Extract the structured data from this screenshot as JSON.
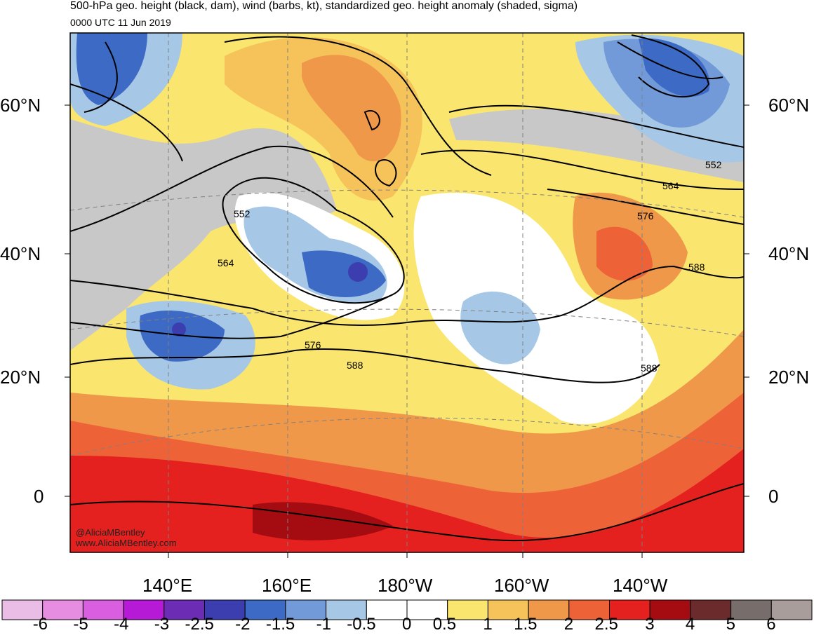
{
  "header": {
    "title": "500-hPa geo. height (black, dam), wind (barbs, kt), standardized geo. height anomaly (shaded, sigma)",
    "valid_time": "0000 UTC 11 Jun 2019"
  },
  "axes": {
    "lat_left": [
      "60°N",
      "40°N",
      "20°N",
      "0"
    ],
    "lat_right": [
      "60°N",
      "40°N",
      "20°N",
      "0"
    ],
    "lon": [
      "140°E",
      "160°E",
      "180°W",
      "160°W",
      "140°W"
    ]
  },
  "contour_labels": [
    "552",
    "564",
    "576",
    "588",
    "552",
    "564",
    "576",
    "588",
    "588"
  ],
  "credit": {
    "twitter": "@AliciaMBentley",
    "website": "www.AliciaMBentley.com"
  },
  "colorbar": {
    "labels": [
      "-6",
      "-5",
      "-4",
      "-3",
      "-2.5",
      "-2",
      "-1.5",
      "-1",
      "-0.5",
      "0",
      "0.5",
      "1",
      "1.5",
      "2",
      "2.5",
      "3",
      "4",
      "5",
      "6"
    ],
    "colors": [
      "#eabde6",
      "#e68de2",
      "#d95ee0",
      "#b61ad6",
      "#6c2db4",
      "#3c3eb0",
      "#3c6ac4",
      "#729ad8",
      "#a6c8e6",
      "#ffffff",
      "#ffffff",
      "#fae66e",
      "#f5c35a",
      "#f0984a",
      "#ee6238",
      "#e4211e",
      "#a40c12",
      "#6b2a2c",
      "#776e6b",
      "#a89d9b"
    ]
  }
}
